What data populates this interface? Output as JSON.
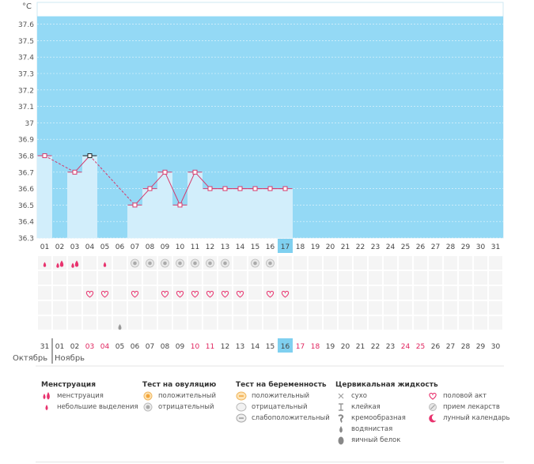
{
  "chart_data": {
    "type": "bar",
    "unit_label": "°С",
    "ylim": [
      36.3,
      37.7
    ],
    "yticks": [
      "36.3",
      "36.4",
      "36.5",
      "36.6",
      "36.7",
      "36.8",
      "36.9",
      "37",
      "37.1",
      "37.2",
      "37.3",
      "37.4",
      "37.5",
      "37.6"
    ],
    "cycle_days": [
      "01",
      "02",
      "03",
      "04",
      "05",
      "06",
      "07",
      "08",
      "09",
      "10",
      "11",
      "12",
      "13",
      "14",
      "15",
      "16",
      "17",
      "18",
      "19",
      "20",
      "21",
      "22",
      "23",
      "24",
      "25",
      "26",
      "27",
      "28",
      "29",
      "30",
      "31"
    ],
    "current_day": "17",
    "values": [
      36.8,
      null,
      36.7,
      36.8,
      null,
      null,
      36.5,
      36.6,
      36.7,
      36.5,
      36.7,
      36.6,
      36.6,
      36.6,
      36.6,
      36.6,
      36.6,
      null,
      null,
      null,
      null,
      null,
      null,
      null,
      null,
      null,
      null,
      null,
      null,
      null,
      null
    ],
    "black_markers": [
      "04"
    ],
    "dashed_segments": [
      [
        "01",
        "03"
      ],
      [
        "04",
        "07"
      ]
    ],
    "menstruation_days": [
      "01",
      "02",
      "03",
      "05"
    ],
    "ovulation_negative_days": [
      "07",
      "08",
      "09",
      "10",
      "11",
      "12",
      "13",
      "15",
      "16"
    ],
    "intercourse_days": [
      "04",
      "05",
      "07",
      "09",
      "10",
      "11",
      "12",
      "13",
      "14",
      "16",
      "17"
    ],
    "cervical_days": [
      "06"
    ],
    "calendar_dates": [
      "31",
      "01",
      "02",
      "03",
      "04",
      "05",
      "06",
      "07",
      "08",
      "09",
      "10",
      "11",
      "12",
      "13",
      "14",
      "15",
      "16",
      "17",
      "18",
      "19",
      "20",
      "21",
      "22",
      "23",
      "24",
      "25",
      "26",
      "27",
      "28",
      "29",
      "30"
    ],
    "weekend_dates": [
      "03",
      "04",
      "10",
      "11",
      "17",
      "18",
      "24",
      "25"
    ],
    "today_date": "16",
    "month_prev": "Октябрь",
    "month_next": "Ноябрь"
  },
  "legend": {
    "menstruation": {
      "title": "Менструация",
      "items": [
        "менструация",
        "небольшие выделения"
      ]
    },
    "ovulation": {
      "title": "Тест на овуляцию",
      "items": [
        "положительный",
        "отрицательный"
      ]
    },
    "pregnancy": {
      "title": "Тест на беременность",
      "items": [
        "положительный",
        "отрицательный",
        "слабоположительный"
      ]
    },
    "cervical": {
      "title": "Цервикальная жидкость",
      "items": [
        "сухо",
        "клейкая",
        "кремообразная",
        "водянистая",
        "яичный белок"
      ]
    },
    "other": {
      "items": [
        "половой акт",
        "прием лекарств",
        "лунный календарь"
      ]
    },
    "colors": {
      "fill": "#94d9f5",
      "bar": "#d2eefb",
      "line": "#d63a6c",
      "accent": "#e8336e",
      "today": "#7fd0f0"
    }
  }
}
